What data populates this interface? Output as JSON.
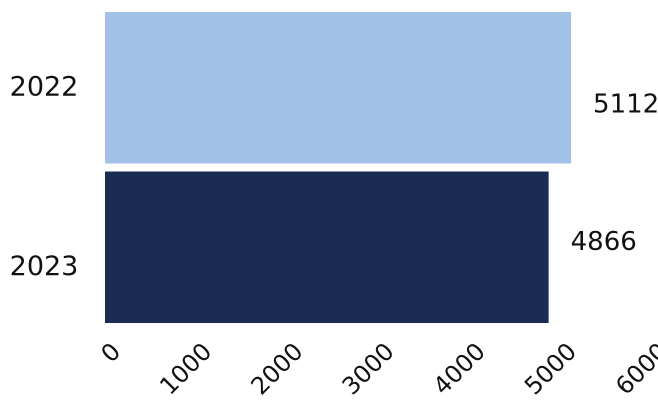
{
  "chart_data": {
    "type": "bar",
    "orientation": "horizontal",
    "categories": [
      "2022",
      "2023"
    ],
    "values": [
      5112,
      4866
    ],
    "colors": [
      "#a1c2e6",
      "#1a2c54"
    ],
    "xlim": [
      0,
      6000
    ],
    "xticks": [
      "0",
      "1000",
      "2000",
      "3000",
      "4000",
      "5000",
      "6000"
    ],
    "grid": false,
    "data_labels": [
      "5112",
      "4866"
    ]
  }
}
